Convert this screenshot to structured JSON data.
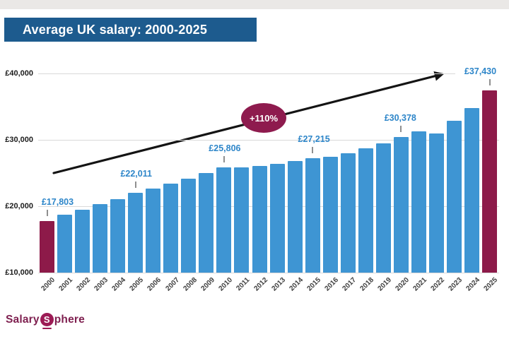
{
  "page": {
    "background": "#ffffff",
    "top_strip_color": "#eae8e6"
  },
  "title_banner": {
    "text": "Average UK salary: 2000-2025",
    "bg": "#1d5b8e",
    "text_color": "#ffffff"
  },
  "chart_data": {
    "type": "bar",
    "title": "Average UK salary: 2000-2025",
    "categories": [
      "2000",
      "2001",
      "2002",
      "2003",
      "2004",
      "2005",
      "2006",
      "2007",
      "2008",
      "2009",
      "2010",
      "2011",
      "2012",
      "2013",
      "2014",
      "2015",
      "2016",
      "2017",
      "2018",
      "2019",
      "2020",
      "2021",
      "2022",
      "2023",
      "2024",
      "2025"
    ],
    "values": [
      17803,
      18700,
      19450,
      20300,
      21100,
      22011,
      22700,
      23400,
      24150,
      25000,
      25806,
      25900,
      26100,
      26400,
      26800,
      27215,
      27500,
      28000,
      28700,
      29500,
      30378,
      31300,
      31000,
      32900,
      34800,
      37430
    ],
    "xlabel": "",
    "ylabel": "",
    "ylim": [
      10000,
      40000
    ],
    "grid": true,
    "legend": "none",
    "yticks": [
      {
        "label": "£10,000",
        "value": 10000
      },
      {
        "label": "£20,000",
        "value": 20000
      },
      {
        "label": "£30,000",
        "value": 30000
      },
      {
        "label": "£40,000",
        "value": 40000
      }
    ],
    "bar_color": "#3e95d3",
    "highlight_color": "#8d1a49",
    "highlight_years": [
      "2000",
      "2025"
    ],
    "data_label_color": "#2e86c9",
    "data_labels": [
      {
        "year": "2000",
        "text": "£17,803",
        "dx": 15
      },
      {
        "year": "2005",
        "text": "£22,011",
        "dx": 1
      },
      {
        "year": "2010",
        "text": "£25,806",
        "dx": 1
      },
      {
        "year": "2015",
        "text": "£27,215",
        "dx": 2
      },
      {
        "year": "2020",
        "text": "£30,378",
        "dx": -1
      },
      {
        "year": "2025",
        "text": "£37,430",
        "dx": -13
      }
    ],
    "annotation": {
      "text": "+110%",
      "bg": "#8e1b4e",
      "text_color": "#ffffff",
      "shape": "ellipse"
    }
  },
  "footer_logo": {
    "prefix": "Salary",
    "badge": "S",
    "suffix": "phere",
    "color": "#7e1f4f",
    "badge_bg": "#9c1b55"
  }
}
